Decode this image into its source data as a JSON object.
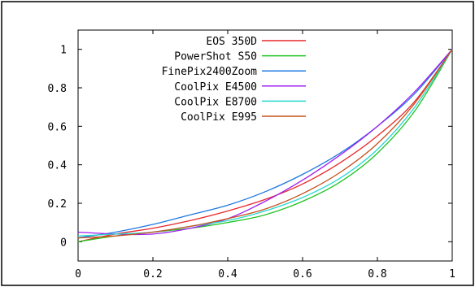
{
  "chart_data": {
    "type": "line",
    "title": "",
    "xlabel": "",
    "ylabel": "",
    "xlim": [
      0,
      1
    ],
    "ylim": [
      -0.1,
      1.1
    ],
    "x_ticks": [
      0,
      0.2,
      0.4,
      0.6,
      0.8,
      1
    ],
    "x_tick_labels": [
      "0",
      "0.2",
      "0.4",
      "0.6",
      "0.8",
      "1"
    ],
    "y_ticks": [
      0,
      0.2,
      0.4,
      0.6,
      0.8,
      1
    ],
    "y_tick_labels": [
      "0",
      "0.2",
      "0.4",
      "0.6",
      "0.8",
      "1"
    ],
    "grid": false,
    "legend_position": "top-left",
    "x": [
      0,
      0.1,
      0.2,
      0.3,
      0.4,
      0.5,
      0.6,
      0.7,
      0.8,
      0.9,
      1
    ],
    "series": [
      {
        "name": "EOS 350D",
        "color": "#e8282b",
        "values": [
          0.0,
          0.04,
          0.07,
          0.11,
          0.16,
          0.22,
          0.3,
          0.41,
          0.55,
          0.73,
          1.0
        ]
      },
      {
        "name": "PowerShot S50",
        "color": "#22c322",
        "values": [
          0.0,
          0.03,
          0.05,
          0.07,
          0.1,
          0.14,
          0.21,
          0.31,
          0.46,
          0.68,
          1.0
        ]
      },
      {
        "name": "FinePix2400Zoom",
        "color": "#1f78e0",
        "values": [
          0.02,
          0.05,
          0.09,
          0.14,
          0.19,
          0.26,
          0.35,
          0.46,
          0.6,
          0.77,
          1.0
        ]
      },
      {
        "name": "CoolPix E4500",
        "color": "#a020f0",
        "values": [
          0.05,
          0.04,
          0.04,
          0.07,
          0.12,
          0.21,
          0.32,
          0.45,
          0.6,
          0.78,
          1.0
        ]
      },
      {
        "name": "CoolPix E8700",
        "color": "#28d8d0",
        "values": [
          0.03,
          0.04,
          0.05,
          0.08,
          0.11,
          0.16,
          0.23,
          0.33,
          0.48,
          0.7,
          1.0
        ]
      },
      {
        "name": "CoolPix E995",
        "color": "#c8501e",
        "values": [
          0.02,
          0.03,
          0.05,
          0.08,
          0.12,
          0.17,
          0.25,
          0.36,
          0.51,
          0.72,
          1.0
        ]
      }
    ]
  }
}
